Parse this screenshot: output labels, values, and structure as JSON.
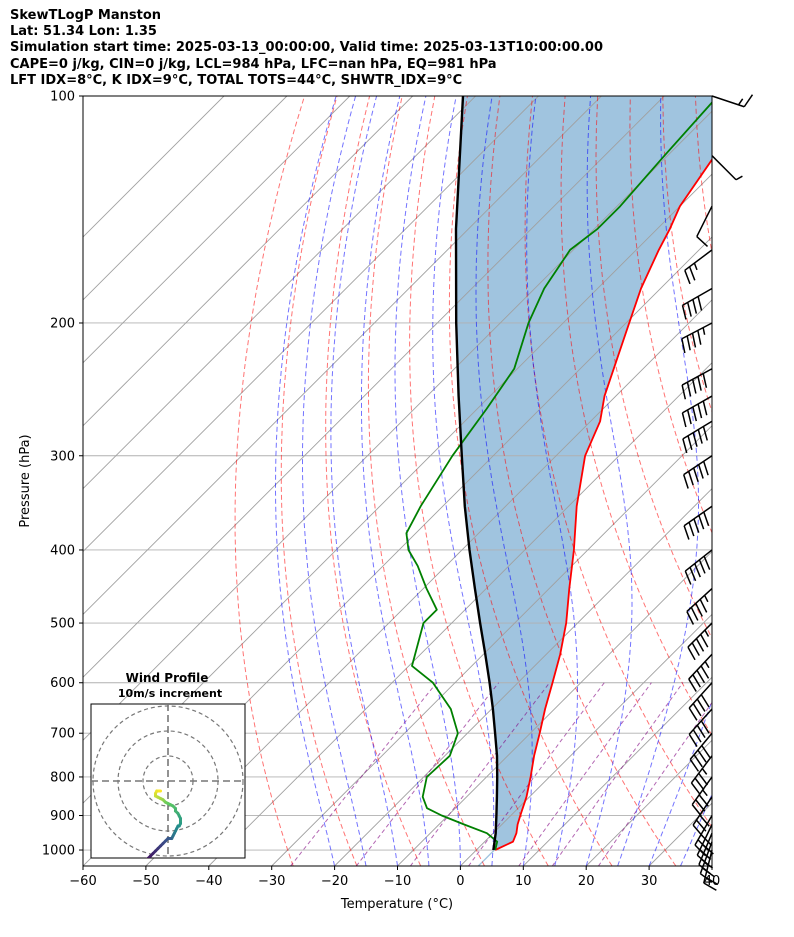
{
  "header": {
    "line1": "SkewTLogP Manston",
    "line2": "Lat: 51.34   Lon: 1.35",
    "line3": "Simulation start time: 2025-03-13_00:00:00, Valid time: 2025-03-13T10:00:00.00",
    "line4": "CAPE=0 j/kg, CIN=0 j/kg, LCL=984 hPa, LFC=nan hPa, EQ=981 hPa",
    "line5": "LFT IDX=8$^\\circ$C, K IDX=9$^\\circ$C, TOTAL TOTS=44$^\\circ$C, SHWTR_IDX=9$^\\circ$C"
  },
  "chart_data": {
    "type": "line",
    "plot": "skew-t log-p",
    "xlabel": "Temperature ($^\\circ$C)",
    "ylabel": "Pressure (hPa)",
    "xlim": [
      -60,
      40
    ],
    "ylim": [
      1050,
      100
    ],
    "y_scale": "log",
    "x_ticks": [
      "−60",
      "−50",
      "−40",
      "−30",
      "−20",
      "−10",
      "0",
      "10",
      "20",
      "30",
      "40"
    ],
    "y_ticks": [
      "100",
      "200",
      "300",
      "400",
      "500",
      "600",
      "700",
      "800",
      "900",
      "1000"
    ],
    "grid": true,
    "colors": {
      "temperature": "#ff0000",
      "dewpoint": "#008000",
      "parcel": "#000000",
      "cape_fill": "#a0c4df",
      "dry_adiabats": "#ff0000",
      "moist_adiabats": "#0000ff",
      "mixing_ratio": "#800080",
      "isotherms": "#a0a0a0"
    },
    "series": [
      {
        "key": "temperature",
        "pressure": [
          1000,
          975,
          950,
          925,
          900,
          850,
          800,
          750,
          700,
          650,
          600,
          550,
          500,
          450,
          400,
          350,
          300,
          270,
          250,
          200,
          180,
          160,
          150,
          140,
          120,
          100
        ],
        "temp": [
          3,
          4.5,
          3.7,
          2.5,
          1.5,
          -0.5,
          -3,
          -5.8,
          -8.5,
          -11.5,
          -14.5,
          -17.8,
          -21.8,
          -26.8,
          -32.2,
          -38.7,
          -45.4,
          -48.5,
          -51.8,
          -59.5,
          -63.1,
          -66.4,
          -68,
          -70,
          -72.5,
          -77.4
        ]
      },
      {
        "key": "dewpoint",
        "pressure": [
          1000,
          975,
          950,
          925,
          900,
          880,
          850,
          800,
          750,
          700,
          650,
          600,
          570,
          500,
          480,
          450,
          420,
          400,
          380,
          350,
          300,
          260,
          230,
          200,
          180,
          160,
          150,
          140,
          120,
          100
        ],
        "temp": [
          3,
          2,
          -1,
          -6,
          -11,
          -14.5,
          -17,
          -19.5,
          -19.2,
          -21.5,
          -26.5,
          -33.5,
          -39.5,
          -44.5,
          -44.5,
          -49.5,
          -54.5,
          -58.5,
          -61.5,
          -63.5,
          -66.5,
          -68.5,
          -70.5,
          -75.5,
          -78.5,
          -80.5,
          -79.5,
          -79.5,
          -80.5,
          -81.5
        ]
      },
      {
        "key": "parcel",
        "pressure": [
          1000,
          950,
          900,
          850,
          800,
          750,
          700,
          650,
          600,
          550,
          500,
          450,
          400,
          350,
          300,
          250,
          200,
          150,
          100
        ],
        "temp": [
          2.7,
          0.4,
          -2.3,
          -5.2,
          -8.3,
          -11.7,
          -15.6,
          -19.8,
          -24.5,
          -29.7,
          -35.5,
          -41.8,
          -48.8,
          -56.5,
          -65.0,
          -75.0,
          -87.0,
          -102.0,
          -122.0
        ]
      }
    ],
    "wind_barbs": {
      "pressure": [
        1000,
        975,
        950,
        925,
        900,
        850,
        800,
        750,
        700,
        650,
        600,
        550,
        500,
        450,
        400,
        350,
        300,
        270,
        250,
        230,
        200,
        180,
        160,
        140,
        120,
        100
      ],
      "u": [
        5,
        8,
        10,
        12,
        15,
        18,
        20,
        22,
        25,
        27,
        28,
        30,
        32,
        35,
        38,
        40,
        42,
        43,
        44,
        44,
        42,
        35,
        20,
        5,
        -5,
        -15
      ],
      "v": [
        20,
        22,
        24,
        25,
        26,
        27,
        28,
        29,
        30,
        30,
        31,
        32,
        32,
        32,
        30,
        28,
        28,
        26,
        25,
        24,
        22,
        20,
        15,
        10,
        5,
        5
      ]
    },
    "hodograph": {
      "title": "Wind Profile",
      "subtitle": "10m/s increment",
      "ring_spacing_ms": 10,
      "u": [
        -3,
        -4.5,
        -5,
        -5,
        -4,
        -3,
        -2,
        -1.5,
        -1,
        0,
        1,
        2,
        3,
        3,
        4,
        4.5,
        5,
        5,
        4.5,
        4,
        3.5,
        3,
        2.5,
        2,
        1.5,
        1,
        1,
        0,
        -1,
        -2,
        -3,
        -4,
        -5,
        -6,
        -7,
        -8,
        -9,
        -9
      ],
      "v": [
        -4,
        -4,
        -5,
        -6,
        -6.5,
        -7,
        -7.5,
        -8,
        -8.5,
        -9,
        -9.5,
        -10,
        -11,
        -12,
        -13,
        -14,
        -15,
        -17,
        -18,
        -18,
        -19,
        -20,
        -21,
        -22,
        -23,
        -23,
        -23,
        -23,
        -24,
        -25,
        -26,
        -27,
        -28,
        -29,
        -30,
        -31,
        -32,
        -33
      ]
    }
  }
}
